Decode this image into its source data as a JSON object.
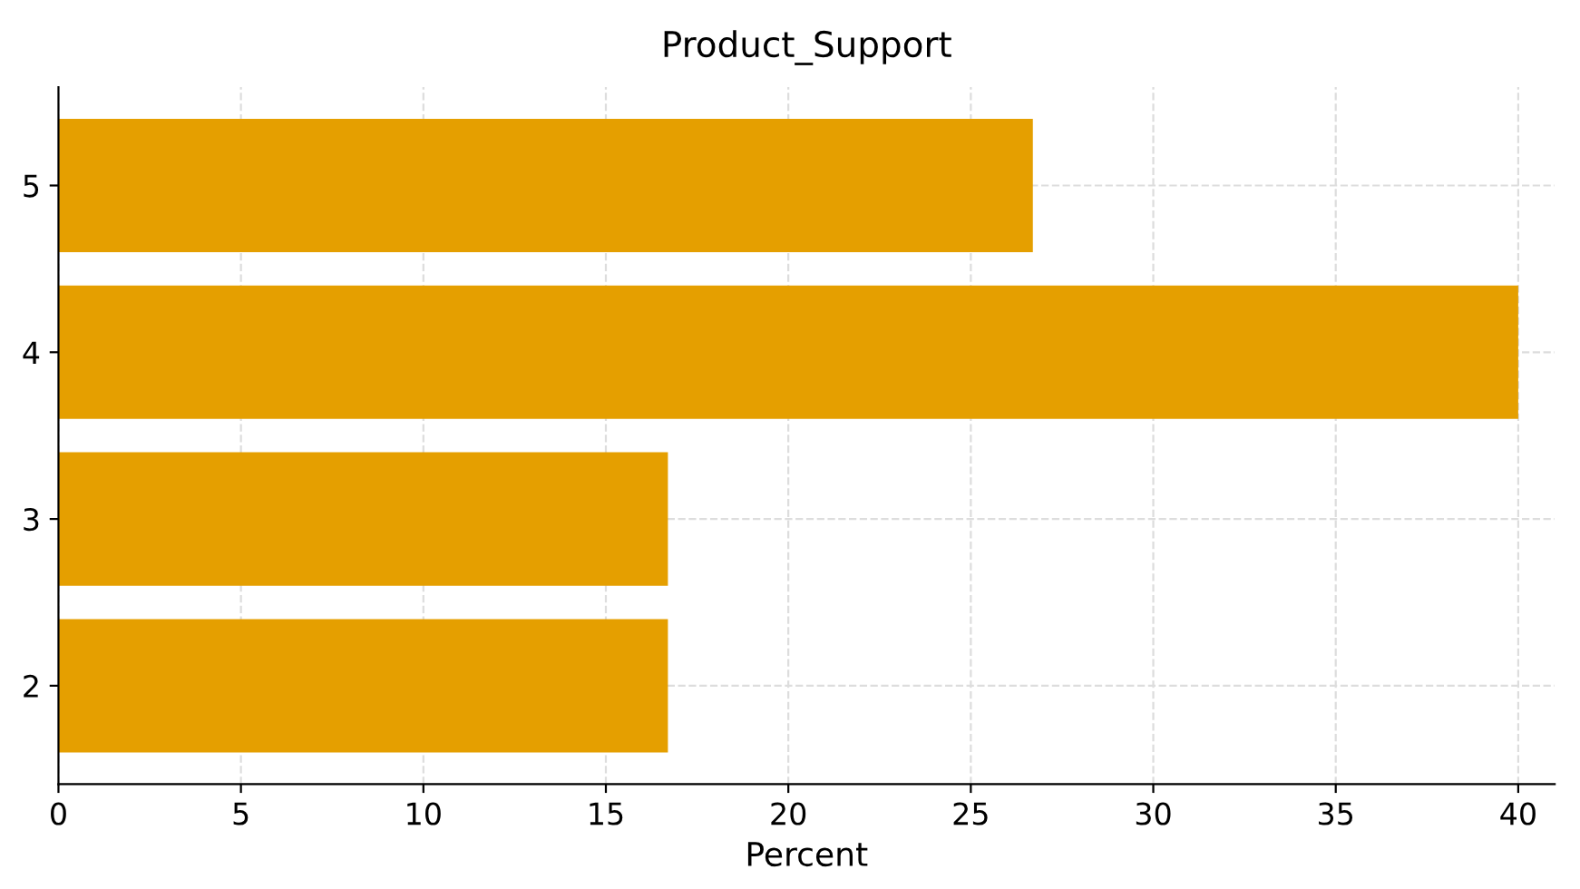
{
  "chart_data": {
    "type": "bar",
    "orientation": "horizontal",
    "title": "Product_Support",
    "xlabel": "Percent",
    "categories": [
      "5",
      "4",
      "3",
      "2"
    ],
    "values": [
      26.7,
      40,
      16.7,
      16.7
    ],
    "color": "#e59f00",
    "xlim": [
      0,
      41
    ],
    "xticks": [
      0,
      5,
      10,
      15,
      20,
      25,
      30,
      35,
      40
    ],
    "grid": true
  }
}
